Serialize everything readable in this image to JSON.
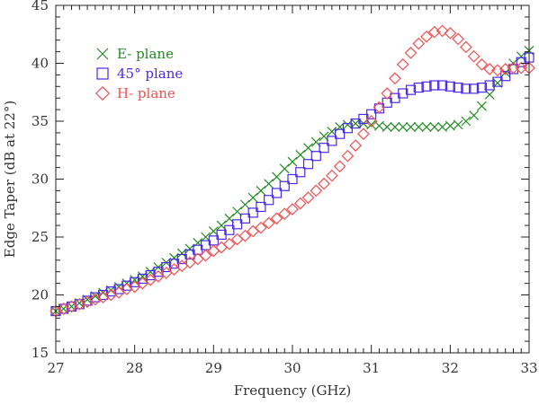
{
  "chart_data": {
    "type": "scatter",
    "xlabel": "Frequency (GHz)",
    "ylabel": "Edge Taper (dB at 22°)",
    "xlim": [
      27,
      33
    ],
    "ylim": [
      15,
      45
    ],
    "xticks": [
      27,
      28,
      29,
      30,
      31,
      32,
      33
    ],
    "yticks": [
      15,
      20,
      25,
      30,
      35,
      40,
      45
    ],
    "grid": false,
    "legend_position": "top-left",
    "series": [
      {
        "name": "E- plane",
        "marker": "x",
        "color": "#228B22",
        "x": [
          27.0,
          27.1,
          27.2,
          27.3,
          27.4,
          27.5,
          27.6,
          27.7,
          27.8,
          27.9,
          28.0,
          28.1,
          28.2,
          28.3,
          28.4,
          28.5,
          28.6,
          28.7,
          28.8,
          28.9,
          29.0,
          29.1,
          29.2,
          29.3,
          29.4,
          29.5,
          29.6,
          29.7,
          29.8,
          29.9,
          30.0,
          30.1,
          30.2,
          30.3,
          30.4,
          30.5,
          30.6,
          30.7,
          30.8,
          30.9,
          31.0,
          31.1,
          31.2,
          31.3,
          31.4,
          31.5,
          31.6,
          31.7,
          31.8,
          31.9,
          32.0,
          32.1,
          32.2,
          32.3,
          32.4,
          32.5,
          32.6,
          32.7,
          32.8,
          32.9,
          33.0
        ],
        "y": [
          18.6,
          18.8,
          19.0,
          19.3,
          19.6,
          19.9,
          20.2,
          20.4,
          20.7,
          21.0,
          21.3,
          21.6,
          22.0,
          22.4,
          22.8,
          23.2,
          23.6,
          24.0,
          24.5,
          25.0,
          25.5,
          26.0,
          26.6,
          27.2,
          27.8,
          28.4,
          29.0,
          29.6,
          30.2,
          30.9,
          31.5,
          32.1,
          32.7,
          33.2,
          33.7,
          34.1,
          34.5,
          34.7,
          34.8,
          34.8,
          34.7,
          34.6,
          34.5,
          34.5,
          34.5,
          34.5,
          34.5,
          34.5,
          34.5,
          34.5,
          34.6,
          34.7,
          35.0,
          35.5,
          36.3,
          37.3,
          38.3,
          39.2,
          40.0,
          40.6,
          41.1
        ]
      },
      {
        "name": "45° plane",
        "marker": "square",
        "color": "#4B2BE6",
        "x": [
          27.0,
          27.1,
          27.2,
          27.3,
          27.4,
          27.5,
          27.6,
          27.7,
          27.8,
          27.9,
          28.0,
          28.1,
          28.2,
          28.3,
          28.4,
          28.5,
          28.6,
          28.7,
          28.8,
          28.9,
          29.0,
          29.1,
          29.2,
          29.3,
          29.4,
          29.5,
          29.6,
          29.7,
          29.8,
          29.9,
          30.0,
          30.1,
          30.2,
          30.3,
          30.4,
          30.5,
          30.6,
          30.7,
          30.8,
          30.9,
          31.0,
          31.1,
          31.2,
          31.3,
          31.4,
          31.5,
          31.6,
          31.7,
          31.8,
          31.9,
          32.0,
          32.1,
          32.2,
          32.3,
          32.4,
          32.5,
          32.6,
          32.7,
          32.8,
          32.9,
          33.0
        ],
        "y": [
          18.6,
          18.8,
          19.0,
          19.2,
          19.5,
          19.8,
          20.0,
          20.3,
          20.5,
          20.8,
          21.1,
          21.4,
          21.7,
          22.0,
          22.4,
          22.7,
          23.1,
          23.5,
          23.9,
          24.3,
          24.7,
          25.2,
          25.6,
          26.1,
          26.6,
          27.1,
          27.6,
          28.2,
          28.8,
          29.4,
          30.0,
          30.6,
          31.3,
          32.0,
          32.7,
          33.3,
          33.9,
          34.4,
          34.8,
          35.2,
          35.6,
          36.1,
          36.6,
          37.0,
          37.4,
          37.7,
          37.9,
          38.0,
          38.1,
          38.1,
          38.0,
          37.9,
          37.8,
          37.8,
          37.9,
          38.1,
          38.4,
          38.9,
          39.5,
          40.1,
          40.5
        ]
      },
      {
        "name": "H- plane",
        "marker": "diamond",
        "color": "#F05050",
        "x": [
          27.0,
          27.1,
          27.2,
          27.3,
          27.4,
          27.5,
          27.6,
          27.7,
          27.8,
          27.9,
          28.0,
          28.1,
          28.2,
          28.3,
          28.4,
          28.5,
          28.6,
          28.7,
          28.8,
          28.9,
          29.0,
          29.1,
          29.2,
          29.3,
          29.4,
          29.5,
          29.6,
          29.7,
          29.8,
          29.9,
          30.0,
          30.1,
          30.2,
          30.3,
          30.4,
          30.5,
          30.6,
          30.7,
          30.8,
          30.9,
          31.0,
          31.1,
          31.2,
          31.3,
          31.4,
          31.5,
          31.6,
          31.7,
          31.8,
          31.9,
          32.0,
          32.1,
          32.2,
          32.3,
          32.4,
          32.5,
          32.6,
          32.7,
          32.8,
          32.9,
          33.0
        ],
        "y": [
          18.6,
          18.8,
          19.0,
          19.2,
          19.4,
          19.6,
          19.8,
          20.0,
          20.2,
          20.5,
          20.7,
          21.0,
          21.3,
          21.6,
          21.9,
          22.2,
          22.5,
          22.8,
          23.1,
          23.4,
          23.8,
          24.1,
          24.4,
          24.8,
          25.1,
          25.5,
          25.8,
          26.2,
          26.6,
          27.0,
          27.4,
          27.9,
          28.4,
          29.0,
          29.6,
          30.3,
          31.1,
          32.0,
          32.9,
          33.9,
          35.0,
          36.2,
          37.4,
          38.7,
          39.9,
          40.9,
          41.7,
          42.3,
          42.7,
          42.8,
          42.6,
          42.1,
          41.4,
          40.6,
          39.9,
          39.5,
          39.4,
          39.5,
          39.6,
          39.6,
          39.6
        ]
      }
    ]
  }
}
